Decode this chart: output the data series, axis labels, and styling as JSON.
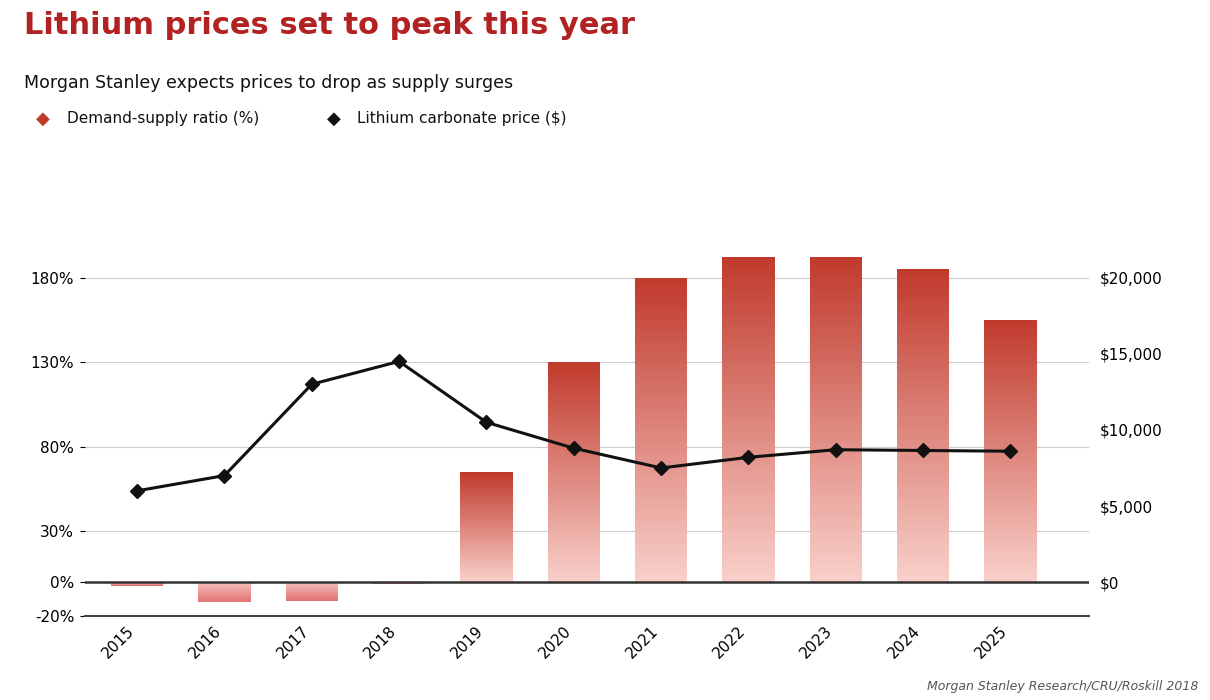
{
  "title": "Lithium prices set to peak this year",
  "subtitle": "Morgan Stanley expects prices to drop as supply surges",
  "legend_bar": "Demand-supply ratio (%)",
  "legend_line": "Lithium carbonate price ($)",
  "years": [
    2015,
    2016,
    2017,
    2018,
    2019,
    2020,
    2021,
    2022,
    2023,
    2024,
    2025
  ],
  "bar_values": [
    -2,
    -12,
    -11,
    -1,
    65,
    130,
    180,
    192,
    192,
    185,
    155
  ],
  "line_values": [
    6000,
    7000,
    13000,
    14500,
    10500,
    8800,
    7500,
    8200,
    8700,
    8650,
    8600
  ],
  "ylim_left": [
    -20,
    220
  ],
  "ylim_right": [
    -2222,
    24444
  ],
  "yticks_left": [
    -20,
    0,
    30,
    80,
    130,
    180
  ],
  "yticks_right_vals": [
    0,
    5000,
    10000,
    15000,
    20000
  ],
  "yticks_right_labels": [
    "$0",
    "$5,000",
    "$10,000",
    "$15,000",
    "$20,000"
  ],
  "bar_color_top": "#c0392b",
  "bar_color_bottom": "#f9d0cb",
  "neg_bar_color_top": "#e07070",
  "neg_bar_color_bottom": "#f5c0bc",
  "line_color": "#111111",
  "bg_color": "#ffffff",
  "title_color": "#b22222",
  "subtitle_color": "#111111",
  "grid_color": "#cccccc",
  "source_text": "Morgan Stanley Research/CRU/Roskill 2018",
  "bar_width": 0.6
}
